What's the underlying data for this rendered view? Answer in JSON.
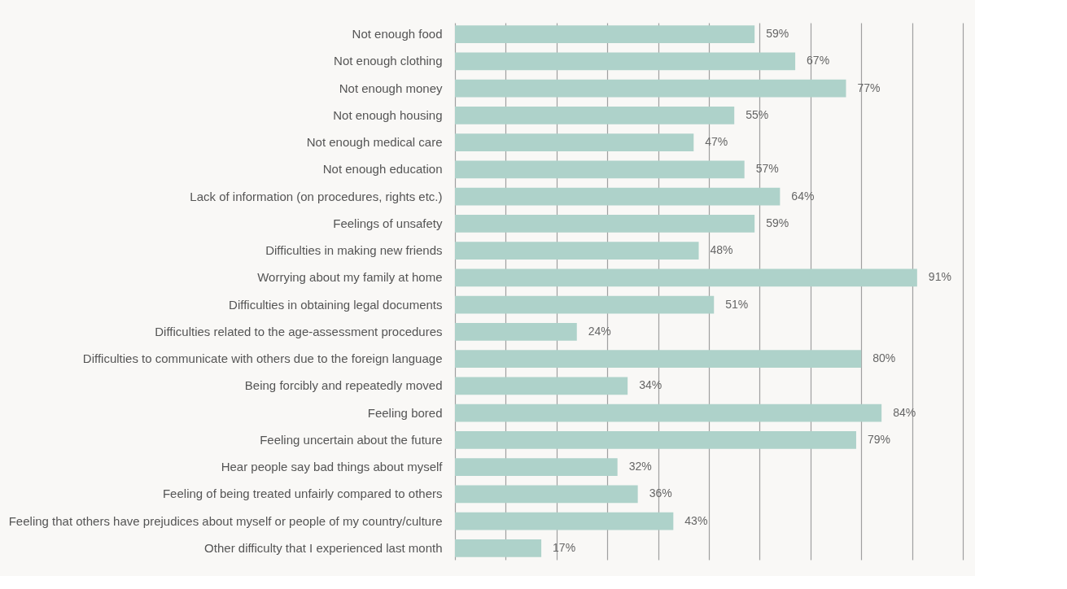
{
  "chart_data": {
    "type": "bar",
    "orientation": "horizontal",
    "categories": [
      "Not enough food",
      "Not enough clothing",
      "Not enough money",
      "Not enough housing",
      "Not enough medical care",
      "Not enough education",
      "Lack of information (on procedures, rights etc.)",
      "Feelings of unsafety",
      "Difficulties in making new friends",
      "Worrying about my family at home",
      "Difficulties in obtaining legal documents",
      "Difficulties related to the age-assessment procedures",
      "Difficulties to communicate with others due to the foreign language",
      "Being forcibly and repeatedly moved",
      "Feeling bored",
      "Feeling uncertain about the future",
      "Hear people say bad things about myself",
      "Feeling of being treated unfairly compared to others",
      "Feeling that others have prejudices about myself or people of my country/culture",
      "Other difficulty that I experienced last month"
    ],
    "values": [
      59,
      67,
      77,
      55,
      47,
      57,
      64,
      59,
      48,
      91,
      51,
      24,
      80,
      34,
      84,
      79,
      32,
      36,
      43,
      17
    ],
    "value_labels": [
      "59%",
      "67%",
      "77%",
      "55%",
      "47%",
      "57%",
      "64%",
      "59%",
      "48%",
      "91%",
      "51%",
      "24%",
      "80%",
      "34%",
      "84%",
      "79%",
      "32%",
      "36%",
      "43%",
      "17%"
    ],
    "color": "#aed2ca",
    "xlim": [
      0,
      100
    ],
    "xticks": [
      {
        "value": 0,
        "label": null
      },
      {
        "value": 10,
        "label": null
      },
      {
        "value": 20,
        "label": null
      },
      {
        "value": 30,
        "label": null
      },
      {
        "value": 40,
        "label": null
      },
      {
        "value": 50,
        "label": null
      },
      {
        "value": 60,
        "label": null
      },
      {
        "value": 70,
        "label": null
      },
      {
        "value": 80,
        "label": null
      },
      {
        "value": 90,
        "label": null
      },
      {
        "value": 100,
        "label": null
      }
    ],
    "grid": "x",
    "tick_labels": "y"
  }
}
